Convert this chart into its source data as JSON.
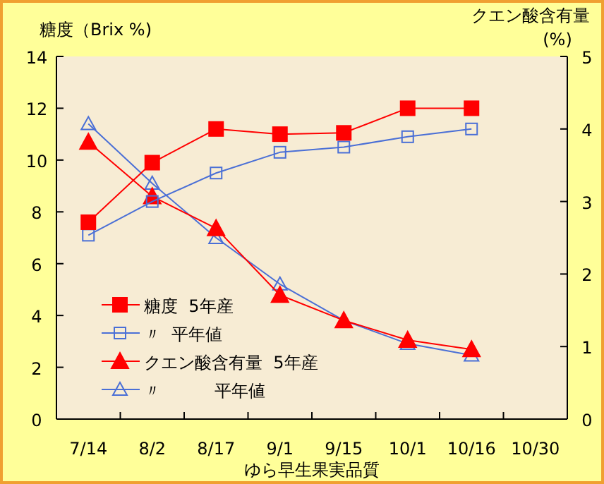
{
  "chart_data": {
    "type": "line",
    "xlabel": "ゆら早生果実品質",
    "ylabel": "糖度（Brix %)",
    "y2label": "クエン酸含有量\n(%)",
    "categories": [
      "7/14",
      "8/2",
      "8/17",
      "9/1",
      "9/15",
      "10/1",
      "10/16",
      "10/30"
    ],
    "ylim": [
      0,
      14
    ],
    "yticks": [
      0,
      2,
      4,
      6,
      8,
      10,
      12,
      14
    ],
    "y2lim": [
      0,
      5
    ],
    "y2ticks": [
      0,
      1,
      2,
      3,
      4,
      5
    ],
    "legend": "bottom left",
    "grid": false,
    "series": [
      {
        "name": "糖度  5年産",
        "color": "#ff0000",
        "marker": "square",
        "values": [
          7.6,
          9.9,
          11.2,
          11.0,
          11.05,
          12.0,
          12.0,
          null
        ]
      },
      {
        "name": "〃  平年値",
        "color": "#4a6fd6",
        "marker": "square",
        "values": [
          7.1,
          8.4,
          9.5,
          10.3,
          10.5,
          10.9,
          11.2,
          null
        ]
      },
      {
        "name": "クエン酸含有量  5年産",
        "color": "#ff0000",
        "marker": "triangle",
        "axis": "y2",
        "values": [
          3.82,
          3.07,
          2.63,
          1.71,
          1.36,
          1.09,
          0.96,
          null
        ]
      },
      {
        "name": "〃          平年値",
        "color": "#4a6fd6",
        "marker": "triangle",
        "axis": "y2",
        "values": [
          4.07,
          3.25,
          2.5,
          1.86,
          1.36,
          1.04,
          0.88,
          null
        ]
      }
    ]
  }
}
